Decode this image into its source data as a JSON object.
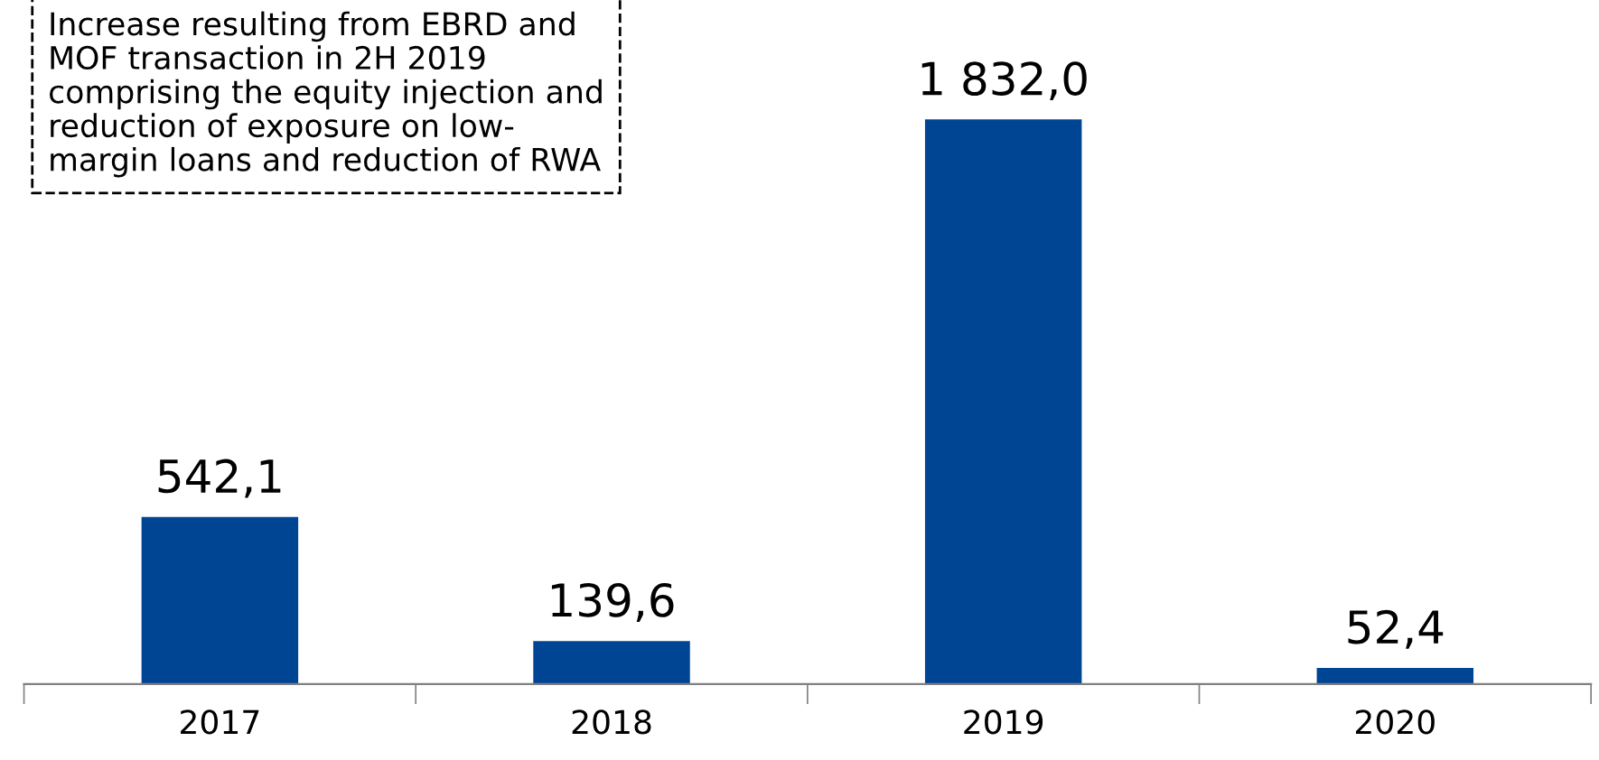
{
  "chart_data": {
    "type": "bar",
    "categories": [
      "2017",
      "2018",
      "2019",
      "2020"
    ],
    "values": [
      542.1,
      139.6,
      1832.0,
      52.4
    ],
    "value_labels": [
      "542,1",
      "139,6",
      "1 832,0",
      "52,4"
    ],
    "color": "#004494",
    "grid": false,
    "legend": false,
    "annotations": [
      "Increase resulting from EBRD and\nMOF transaction in 2H 2019\ncomprising the equity injection and\nreduction of exposure on low-\nmargin loans and reduction of RWA"
    ]
  }
}
